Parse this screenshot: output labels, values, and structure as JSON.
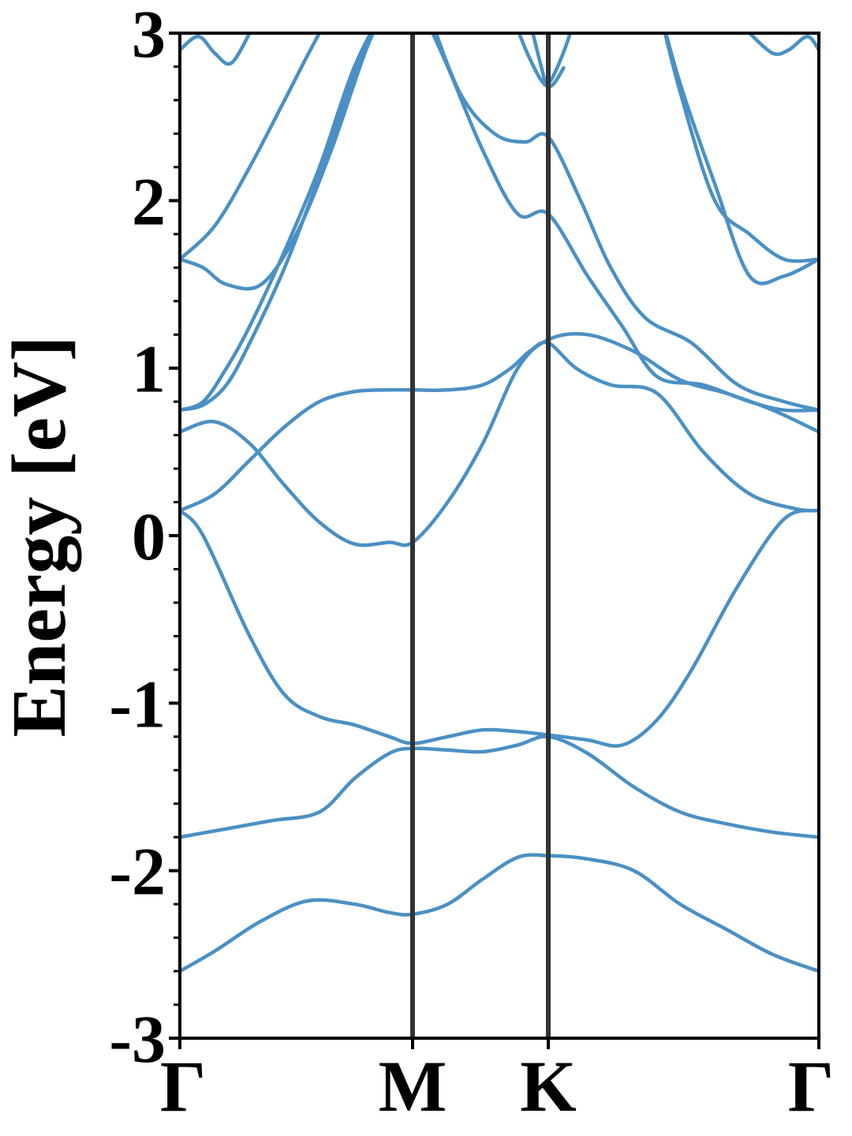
{
  "chart_data": {
    "type": "line",
    "title": "",
    "xlabel": "",
    "ylabel": "Energy [eV]",
    "ylim": [
      -3,
      3
    ],
    "yticks": [
      -3,
      -2,
      -1,
      0,
      1,
      2,
      3
    ],
    "ytick_labels": [
      "-3",
      "-2",
      "-1",
      "0",
      "1",
      "2",
      "3"
    ],
    "xlim": [
      0,
      2.75
    ],
    "xticks": [
      0,
      1,
      1.58,
      2.75
    ],
    "xtick_labels": [
      "Γ",
      "M",
      "K",
      "Γ"
    ],
    "grid": false,
    "legend": "none",
    "band_color": "#4a90c4",
    "divider_color": "#333333",
    "series": [
      {
        "x": [
          0,
          0.15,
          0.35,
          0.55,
          0.75,
          0.9,
          1.0,
          1.15,
          1.3,
          1.45,
          1.58,
          1.75,
          1.95,
          2.15,
          2.35,
          2.55,
          2.75
        ],
        "values": [
          -2.6,
          -2.48,
          -2.3,
          -2.18,
          -2.2,
          -2.25,
          -2.26,
          -2.2,
          -2.05,
          -1.92,
          -1.91,
          -1.93,
          -2.0,
          -2.2,
          -2.35,
          -2.5,
          -2.6
        ]
      },
      {
        "x": [
          0,
          0.2,
          0.4,
          0.6,
          0.75,
          0.9,
          1.0,
          1.15,
          1.3,
          1.45,
          1.58,
          1.75,
          1.95,
          2.15,
          2.35,
          2.55,
          2.75
        ],
        "values": [
          -1.8,
          -1.75,
          -1.7,
          -1.65,
          -1.45,
          -1.3,
          -1.27,
          -1.28,
          -1.29,
          -1.25,
          -1.2,
          -1.3,
          -1.5,
          -1.65,
          -1.72,
          -1.77,
          -1.8
        ]
      },
      {
        "x": [
          0,
          0.1,
          0.3,
          0.45,
          0.6,
          0.75,
          0.9,
          1.0,
          1.15,
          1.3,
          1.45,
          1.58,
          1.75,
          1.9,
          2.05,
          2.2,
          2.4,
          2.6,
          2.75
        ],
        "values": [
          0.15,
          0.0,
          -0.6,
          -0.95,
          -1.08,
          -1.13,
          -1.2,
          -1.24,
          -1.2,
          -1.16,
          -1.17,
          -1.19,
          -1.22,
          -1.25,
          -1.1,
          -0.8,
          -0.3,
          0.1,
          0.15
        ]
      },
      {
        "x": [
          0,
          0.15,
          0.3,
          0.45,
          0.6,
          0.75,
          0.9,
          1.0,
          1.15,
          1.3,
          1.45,
          1.58,
          1.75,
          1.95,
          2.15,
          2.35,
          2.55,
          2.75
        ],
        "values": [
          0.62,
          0.68,
          0.55,
          0.3,
          0.08,
          -0.05,
          -0.04,
          -0.04,
          0.2,
          0.55,
          1.0,
          1.17,
          1.2,
          1.1,
          0.93,
          0.85,
          0.75,
          0.62
        ]
      },
      {
        "x": [
          0,
          0.15,
          0.3,
          0.45,
          0.6,
          0.75,
          0.9,
          1.0,
          1.15,
          1.3,
          1.42,
          1.5,
          1.58,
          1.7,
          1.85,
          2.05,
          2.25,
          2.45,
          2.65,
          2.75
        ],
        "values": [
          0.15,
          0.25,
          0.45,
          0.65,
          0.8,
          0.86,
          0.87,
          0.87,
          0.87,
          0.9,
          1.0,
          1.1,
          1.15,
          1.0,
          0.9,
          0.85,
          0.5,
          0.25,
          0.16,
          0.15
        ]
      },
      {
        "x": [
          0,
          0.1,
          0.2,
          0.3,
          0.45,
          0.6,
          0.75,
          0.9
        ],
        "values": [
          0.75,
          0.8,
          1.0,
          1.25,
          1.7,
          2.2,
          2.8,
          3.2
        ]
      },
      {
        "x": [
          0,
          0.1,
          0.2,
          0.3,
          0.45,
          0.6,
          0.75,
          0.9
        ],
        "values": [
          0.75,
          0.78,
          0.9,
          1.15,
          1.6,
          2.15,
          2.75,
          3.2
        ]
      },
      {
        "x": [
          0,
          0.1,
          0.2,
          0.35,
          0.5,
          0.65,
          0.8,
          0.9
        ],
        "values": [
          1.65,
          1.6,
          1.5,
          1.5,
          1.8,
          2.3,
          2.9,
          3.2
        ]
      },
      {
        "x": [
          0,
          0.15,
          0.3,
          0.45,
          0.6,
          0.7
        ],
        "values": [
          1.65,
          1.85,
          2.2,
          2.6,
          3.0,
          3.2
        ]
      },
      {
        "x": [
          1.02,
          1.15,
          1.3,
          1.45,
          1.58,
          1.75,
          1.9,
          2.05,
          2.25,
          2.45,
          2.6,
          2.75
        ],
        "values": [
          3.2,
          2.8,
          2.3,
          1.92,
          1.92,
          1.55,
          1.25,
          0.95,
          0.9,
          0.8,
          0.75,
          0.75
        ]
      },
      {
        "x": [
          1.05,
          1.2,
          1.35,
          1.48,
          1.58,
          1.72,
          1.85,
          2.0,
          2.2,
          2.4,
          2.6,
          2.75
        ],
        "values": [
          3.2,
          2.65,
          2.4,
          2.35,
          2.38,
          2.0,
          1.6,
          1.3,
          1.15,
          0.9,
          0.8,
          0.75
        ]
      },
      {
        "x": [
          1.4,
          1.5,
          1.58,
          1.65
        ],
        "values": [
          3.2,
          2.85,
          2.68,
          2.8
        ]
      },
      {
        "x": [
          1.48,
          1.55,
          1.58,
          1.65,
          1.72
        ],
        "values": [
          3.2,
          2.8,
          2.7,
          2.9,
          3.2
        ]
      },
      {
        "x": [
          2.05,
          2.15,
          2.3,
          2.45,
          2.6,
          2.75
        ],
        "values": [
          3.2,
          2.7,
          2.1,
          1.55,
          1.55,
          1.65
        ]
      },
      {
        "x": [
          2.05,
          2.15,
          2.3,
          2.45,
          2.6,
          2.75
        ],
        "values": [
          3.2,
          2.65,
          2.0,
          1.8,
          1.65,
          1.65
        ]
      },
      {
        "x": [
          0,
          0.08,
          0.15,
          0.22,
          0.3
        ],
        "values": [
          2.9,
          2.98,
          2.88,
          2.82,
          3.0
        ]
      },
      {
        "x": [
          2.45,
          2.55,
          2.62,
          2.7,
          2.75
        ],
        "values": [
          3.0,
          2.88,
          2.9,
          2.98,
          2.9
        ]
      }
    ]
  }
}
